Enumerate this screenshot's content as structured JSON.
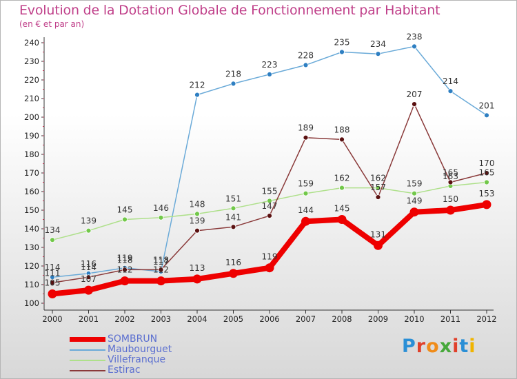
{
  "title": "Evolution de la Dotation Globale de Fonctionnement par Habitant",
  "subtitle": "(en € et par an)",
  "logo": {
    "text": "Proxiti",
    "colors": [
      "#2a8fd6",
      "#e0402a",
      "#f08c1a",
      "#46a83a",
      "#e0402a",
      "#2a8fd6",
      "#f0b400"
    ]
  },
  "chart_data": {
    "type": "line",
    "title": "Evolution de la Dotation Globale de Fonctionnement par Habitant",
    "subtitle": "(en € et par an)",
    "categories": [
      "2000",
      "2001",
      "2002",
      "2003",
      "2004",
      "2005",
      "2006",
      "2007",
      "2008",
      "2009",
      "2010",
      "2011",
      "2012"
    ],
    "ylim": [
      100,
      240
    ],
    "yticks": [
      "100",
      "110",
      "120",
      "130",
      "140",
      "150",
      "160",
      "170",
      "180",
      "190",
      "200",
      "210",
      "220",
      "230",
      "240"
    ],
    "grid": false,
    "legend_position": "bottom-left",
    "series": [
      {
        "name": "Maubourguet",
        "color": "#6aaad8",
        "marker": "#2e7fc2",
        "values": [
          114,
          116,
          119,
          117,
          212,
          218,
          223,
          228,
          235,
          234,
          238,
          214,
          201
        ],
        "labels": [
          "114",
          "116",
          "119",
          "117",
          "212",
          "218",
          "223",
          "228",
          "235",
          "234",
          "238",
          "214",
          "201"
        ]
      },
      {
        "name": "Villefranque",
        "color": "#aee08a",
        "marker": "#72c84a",
        "values": [
          134,
          139,
          145,
          146,
          148,
          151,
          155,
          159,
          162,
          162,
          159,
          163,
          165
        ],
        "labels": [
          "134",
          "139",
          "145",
          "146",
          "148",
          "151",
          "155",
          "159",
          "162",
          "162",
          "159",
          "163",
          "165"
        ]
      },
      {
        "name": "Estirac",
        "color": "#8a3a3a",
        "marker": "#5a1010",
        "values": [
          111,
          114,
          118,
          118,
          139,
          141,
          147,
          189,
          188,
          157,
          207,
          165,
          170
        ],
        "labels": [
          "111",
          "114",
          "118",
          "118",
          "139",
          "141",
          "147",
          "189",
          "188",
          "157",
          "207",
          "165",
          "170"
        ]
      },
      {
        "name": "SOMBRUN",
        "color": "#ee0000",
        "marker": "#ee0000",
        "values": [
          105,
          107,
          112,
          112,
          113,
          116,
          119,
          144,
          145,
          131,
          149,
          150,
          153
        ],
        "labels": [
          "105",
          "107",
          "112",
          "112",
          "113",
          "116",
          "119",
          "144",
          "145",
          "131",
          "149",
          "150",
          "153"
        ]
      }
    ],
    "legend": [
      "SOMBRUN",
      "Maubourguet",
      "Villefranque",
      "Estirac"
    ]
  }
}
